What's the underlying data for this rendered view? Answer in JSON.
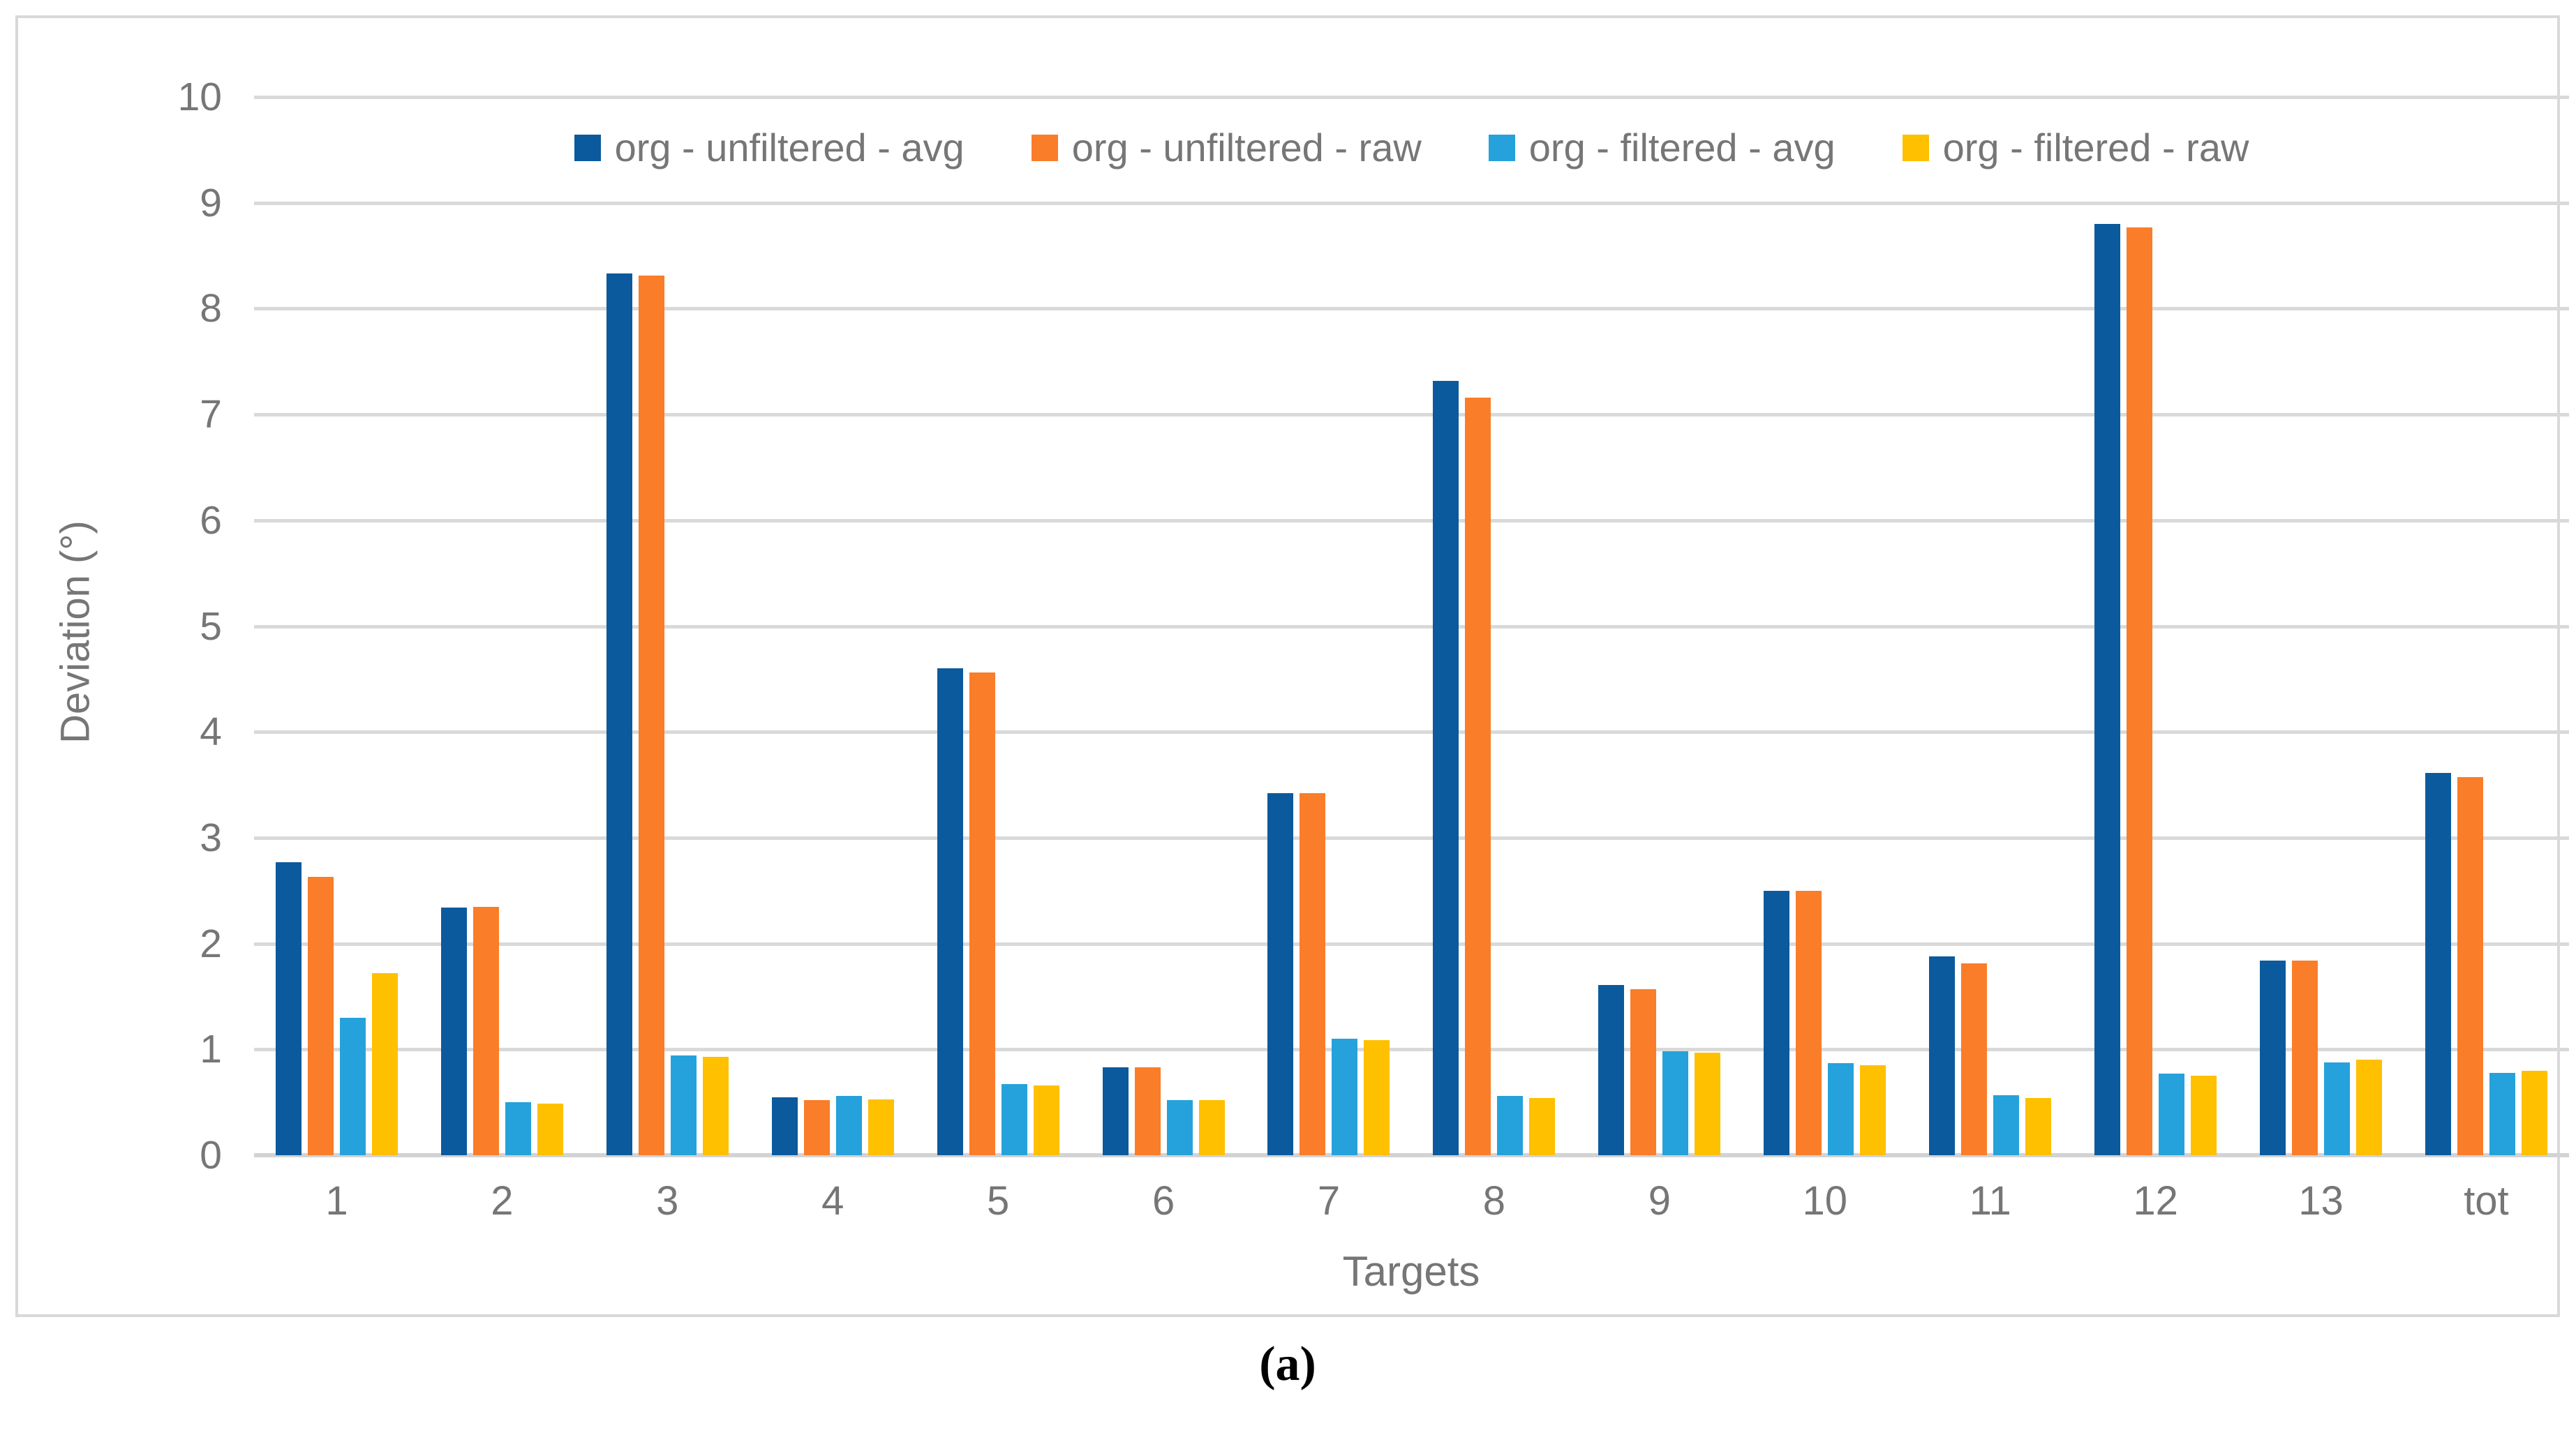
{
  "figure": {
    "caption": "(a)",
    "border_color": "#D9D9D9",
    "background": "#ffffff"
  },
  "chart_data": {
    "type": "bar",
    "title": "",
    "xlabel": "Targets",
    "ylabel": "Deviation (°)",
    "ylim": [
      0,
      10
    ],
    "ytick_step": 1,
    "yticks": [
      "0",
      "1",
      "2",
      "3",
      "4",
      "5",
      "6",
      "7",
      "8",
      "9",
      "10"
    ],
    "grid": true,
    "legend_position": "top",
    "axis_text_color": "#767676",
    "gridline_color": "#D9D9D9",
    "categories": [
      "1",
      "2",
      "3",
      "4",
      "5",
      "6",
      "7",
      "8",
      "9",
      "10",
      "11",
      "12",
      "13",
      "tot"
    ],
    "series": [
      {
        "name": "org - unfiltered - avg",
        "color": "#0B5A9D",
        "values": [
          2.77,
          2.34,
          8.33,
          0.55,
          4.6,
          0.83,
          3.42,
          7.32,
          1.61,
          2.5,
          1.88,
          8.8,
          1.84,
          3.61
        ]
      },
      {
        "name": "org - unfiltered - raw",
        "color": "#FA7D29",
        "values": [
          2.63,
          2.35,
          8.31,
          0.52,
          4.56,
          0.83,
          3.42,
          7.16,
          1.57,
          2.5,
          1.81,
          8.77,
          1.84,
          3.57
        ]
      },
      {
        "name": "org - filtered - avg",
        "color": "#25A2DB",
        "values": [
          1.3,
          0.5,
          0.94,
          0.56,
          0.67,
          0.52,
          1.1,
          0.56,
          0.98,
          0.87,
          0.57,
          0.77,
          0.88,
          0.78
        ]
      },
      {
        "name": "org - filtered - raw",
        "color": "#FFC000",
        "values": [
          1.72,
          0.49,
          0.93,
          0.53,
          0.66,
          0.52,
          1.09,
          0.54,
          0.97,
          0.85,
          0.54,
          0.75,
          0.9,
          0.8
        ]
      }
    ]
  }
}
